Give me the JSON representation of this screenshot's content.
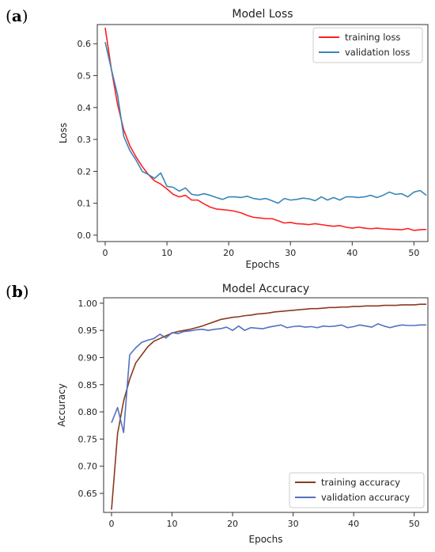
{
  "panels": {
    "a": {
      "open": "(",
      "letter": "a",
      "close": ")"
    },
    "b": {
      "open": "(",
      "letter": "b",
      "close": ")"
    }
  },
  "chart_data": [
    {
      "type": "line",
      "title": "Model Loss",
      "xlabel": "Epochs",
      "ylabel": "Loss",
      "xlim": [
        0,
        52
      ],
      "ylim": [
        -0.02,
        0.66
      ],
      "xticks": [
        0,
        10,
        20,
        30,
        40,
        50
      ],
      "yticks": [
        0.0,
        0.1,
        0.2,
        0.3,
        0.4,
        0.5,
        0.6
      ],
      "ytick_labels": [
        "0.0",
        "0.1",
        "0.2",
        "0.3",
        "0.4",
        "0.5",
        "0.6"
      ],
      "grid": false,
      "legend_position": "top-right",
      "x": [
        0,
        1,
        2,
        3,
        4,
        5,
        6,
        7,
        8,
        9,
        10,
        11,
        12,
        13,
        14,
        15,
        16,
        17,
        18,
        19,
        20,
        21,
        22,
        23,
        24,
        25,
        26,
        27,
        28,
        29,
        30,
        31,
        32,
        33,
        34,
        35,
        36,
        37,
        38,
        39,
        40,
        41,
        42,
        43,
        44,
        45,
        46,
        47,
        48,
        49,
        50,
        51,
        52
      ],
      "series": [
        {
          "name": "training loss",
          "color": "#ff2020",
          "values": [
            0.65,
            0.52,
            0.41,
            0.33,
            0.28,
            0.245,
            0.215,
            0.19,
            0.17,
            0.16,
            0.145,
            0.128,
            0.12,
            0.125,
            0.11,
            0.11,
            0.098,
            0.088,
            0.082,
            0.08,
            0.078,
            0.075,
            0.07,
            0.062,
            0.056,
            0.054,
            0.052,
            0.052,
            0.045,
            0.038,
            0.04,
            0.036,
            0.035,
            0.033,
            0.036,
            0.033,
            0.03,
            0.028,
            0.03,
            0.025,
            0.022,
            0.025,
            0.022,
            0.02,
            0.022,
            0.02,
            0.019,
            0.018,
            0.017,
            0.021,
            0.015,
            0.017,
            0.018
          ]
        },
        {
          "name": "validation loss",
          "color": "#3a85b8",
          "values": [
            0.605,
            0.52,
            0.44,
            0.31,
            0.265,
            0.235,
            0.2,
            0.19,
            0.178,
            0.195,
            0.153,
            0.15,
            0.138,
            0.148,
            0.128,
            0.125,
            0.13,
            0.125,
            0.118,
            0.112,
            0.12,
            0.12,
            0.118,
            0.122,
            0.115,
            0.112,
            0.115,
            0.108,
            0.1,
            0.115,
            0.11,
            0.112,
            0.116,
            0.114,
            0.108,
            0.12,
            0.11,
            0.118,
            0.11,
            0.12,
            0.12,
            0.118,
            0.12,
            0.125,
            0.118,
            0.125,
            0.135,
            0.128,
            0.13,
            0.12,
            0.135,
            0.14,
            0.125
          ]
        }
      ]
    },
    {
      "type": "line",
      "title": "Model Accuracy",
      "xlabel": "Epochs",
      "ylabel": "Accuracy",
      "xlim": [
        0,
        52
      ],
      "ylim": [
        0.615,
        1.01
      ],
      "xticks": [
        0,
        10,
        20,
        30,
        40,
        50
      ],
      "yticks": [
        0.65,
        0.7,
        0.75,
        0.8,
        0.85,
        0.9,
        0.95,
        1.0
      ],
      "ytick_labels": [
        "0.65",
        "0.70",
        "0.75",
        "0.80",
        "0.85",
        "0.90",
        "0.95",
        "1.00"
      ],
      "grid": false,
      "legend_position": "bottom-right",
      "x": [
        0,
        1,
        2,
        3,
        4,
        5,
        6,
        7,
        8,
        9,
        10,
        11,
        12,
        13,
        14,
        15,
        16,
        17,
        18,
        19,
        20,
        21,
        22,
        23,
        24,
        25,
        26,
        27,
        28,
        29,
        30,
        31,
        32,
        33,
        34,
        35,
        36,
        37,
        38,
        39,
        40,
        41,
        42,
        43,
        44,
        45,
        46,
        47,
        48,
        49,
        50,
        51,
        52
      ],
      "series": [
        {
          "name": "training accuracy",
          "color": "#8b3a1e",
          "values": [
            0.62,
            0.76,
            0.82,
            0.86,
            0.89,
            0.905,
            0.92,
            0.93,
            0.935,
            0.94,
            0.945,
            0.948,
            0.95,
            0.952,
            0.955,
            0.958,
            0.962,
            0.966,
            0.97,
            0.972,
            0.974,
            0.975,
            0.977,
            0.978,
            0.98,
            0.981,
            0.982,
            0.984,
            0.985,
            0.986,
            0.987,
            0.988,
            0.989,
            0.99,
            0.99,
            0.991,
            0.992,
            0.992,
            0.993,
            0.993,
            0.994,
            0.994,
            0.995,
            0.995,
            0.995,
            0.996,
            0.996,
            0.996,
            0.997,
            0.997,
            0.997,
            0.998,
            0.998
          ]
        },
        {
          "name": "validation accuracy",
          "color": "#5570c0",
          "values": [
            0.78,
            0.808,
            0.762,
            0.905,
            0.918,
            0.928,
            0.932,
            0.935,
            0.943,
            0.936,
            0.946,
            0.944,
            0.948,
            0.949,
            0.951,
            0.952,
            0.95,
            0.952,
            0.953,
            0.956,
            0.95,
            0.958,
            0.95,
            0.955,
            0.954,
            0.953,
            0.956,
            0.958,
            0.96,
            0.955,
            0.957,
            0.958,
            0.956,
            0.957,
            0.955,
            0.958,
            0.957,
            0.958,
            0.96,
            0.955,
            0.957,
            0.96,
            0.958,
            0.956,
            0.962,
            0.958,
            0.955,
            0.958,
            0.96,
            0.959,
            0.959,
            0.96,
            0.96
          ]
        }
      ]
    }
  ]
}
